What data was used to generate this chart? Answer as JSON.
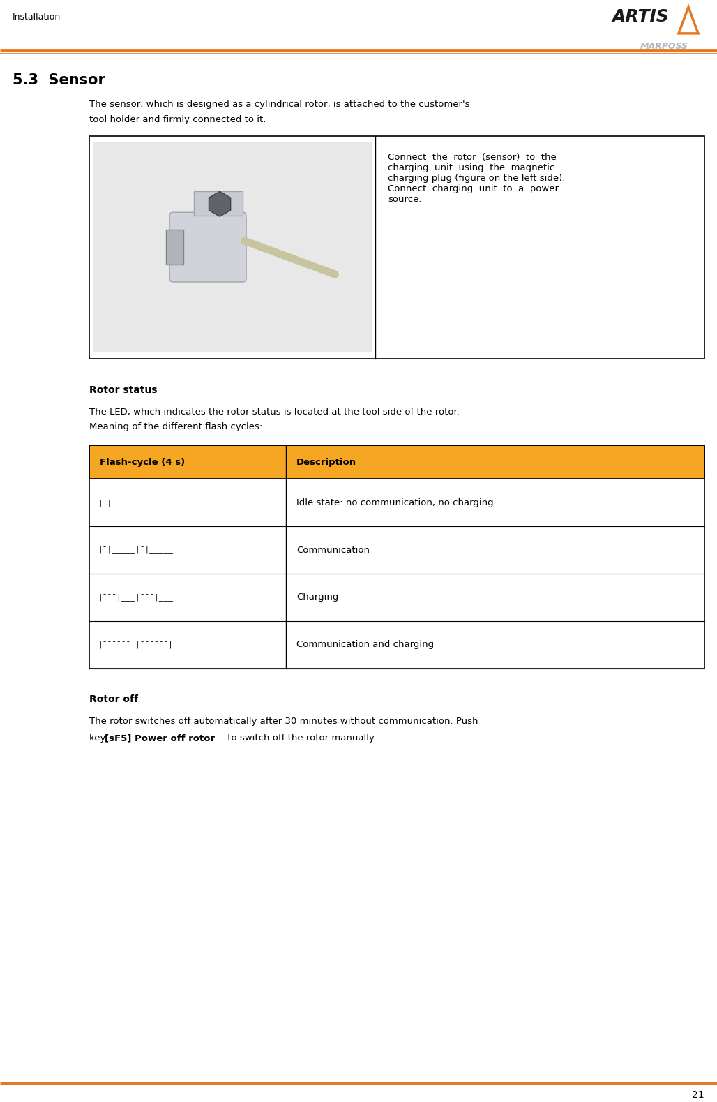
{
  "page_width": 10.28,
  "page_height": 15.79,
  "bg_color": "#ffffff",
  "orange_color": "#F5A623",
  "header_text": "Installation",
  "page_number": "21",
  "section_title": "5.3  Sensor",
  "body_text_1": "The sensor, which is designed as a cylindrical rotor, is attached to the customer's\ntool holder and firmly connected to it.",
  "right_cell_text": "Connect  the  rotor  (sensor)  to  the\ncharging  unit  using  the  magnetic\ncharging plug (figure on the left side).\nConnect  charging  unit  to  a  power\nsource.",
  "rotor_status_title": "Rotor status",
  "rotor_status_text": "The LED, which indicates the rotor status is located at the tool side of the rotor.\nMeaning of the different flash cycles:",
  "table_header_col1": "Flash-cycle (4 s)",
  "table_header_col2": "Description",
  "table_rows": [
    {
      "col1": "|¯|____________",
      "col2": "Idle state: no communication, no charging"
    },
    {
      "col1": "|¯|_____|¯|_____",
      "col2": "Communication"
    },
    {
      "col1": "|¯¯¯|___|¯¯¯|___",
      "col2": "Charging"
    },
    {
      "col1": "|¯¯¯¯¯¯||¯¯¯¯¯¯|",
      "col2": "Communication and charging"
    }
  ],
  "rotor_off_title": "Rotor off",
  "rotor_off_text1": "The rotor switches off automatically after 30 minutes without communication. Push",
  "rotor_off_text2_normal": "key ",
  "rotor_off_text2_bold": "[sF5] Power off rotor",
  "rotor_off_text2_end": " to switch off the rotor manually.",
  "artis_logo_color": "#1a1a1a",
  "orange_line_color": "#E87722",
  "marposs_color": "#b0b8c0"
}
